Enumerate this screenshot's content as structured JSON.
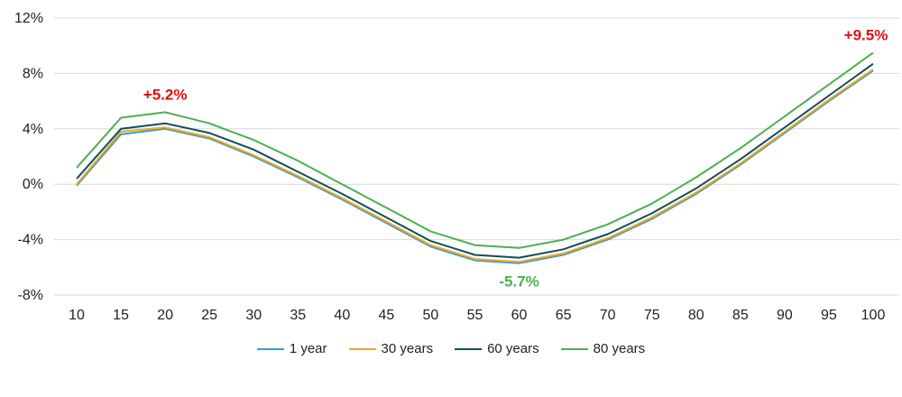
{
  "chart_data": {
    "type": "line",
    "x": [
      10,
      15,
      20,
      25,
      30,
      35,
      40,
      45,
      50,
      55,
      60,
      65,
      70,
      75,
      80,
      85,
      90,
      95,
      100
    ],
    "ylim": [
      -8,
      12
    ],
    "yticks": [
      -8,
      -4,
      0,
      4,
      8,
      12
    ],
    "ytick_labels": [
      "-8%",
      "-4%",
      "0%",
      "4%",
      "8%",
      "12%"
    ],
    "xtick_labels": [
      "10",
      "15",
      "20",
      "25",
      "30",
      "35",
      "40",
      "45",
      "50",
      "55",
      "60",
      "65",
      "70",
      "75",
      "80",
      "85",
      "90",
      "95",
      "100"
    ],
    "grid": "horizontal",
    "legend_position": "bottom",
    "series": [
      {
        "name": "1 year",
        "color": "#3a9ad9",
        "values": [
          -0.1,
          3.6,
          4.0,
          3.3,
          2.0,
          0.5,
          -1.1,
          -2.8,
          -4.5,
          -5.5,
          -5.7,
          -5.1,
          -4.0,
          -2.5,
          -0.7,
          1.4,
          3.7,
          6.0,
          8.2
        ]
      },
      {
        "name": "30 years",
        "color": "#f0a818",
        "values": [
          0.0,
          3.8,
          4.1,
          3.4,
          2.1,
          0.6,
          -1.0,
          -2.7,
          -4.4,
          -5.4,
          -5.6,
          -5.0,
          -3.9,
          -2.4,
          -0.6,
          1.5,
          3.8,
          6.1,
          8.3
        ]
      },
      {
        "name": "60 years",
        "color": "#0d4f5c",
        "values": [
          0.4,
          4.0,
          4.4,
          3.7,
          2.5,
          0.9,
          -0.7,
          -2.4,
          -4.1,
          -5.1,
          -5.3,
          -4.7,
          -3.6,
          -2.1,
          -0.3,
          1.8,
          4.1,
          6.4,
          8.7
        ]
      },
      {
        "name": "80 years",
        "color": "#4caf50",
        "values": [
          1.2,
          4.8,
          5.2,
          4.4,
          3.2,
          1.7,
          0.0,
          -1.7,
          -3.4,
          -4.4,
          -4.6,
          -4.0,
          -2.9,
          -1.4,
          0.5,
          2.6,
          4.9,
          7.2,
          9.5
        ]
      }
    ],
    "annotations": [
      {
        "text": "+5.2%",
        "x": 20,
        "y": 5.2,
        "color": "#e01010"
      },
      {
        "text": "-5.7%",
        "x": 60,
        "y": -5.7,
        "color": "#4caf50"
      },
      {
        "text": "+9.5%",
        "x": 100,
        "y": 9.5,
        "color": "#e01010"
      }
    ]
  }
}
